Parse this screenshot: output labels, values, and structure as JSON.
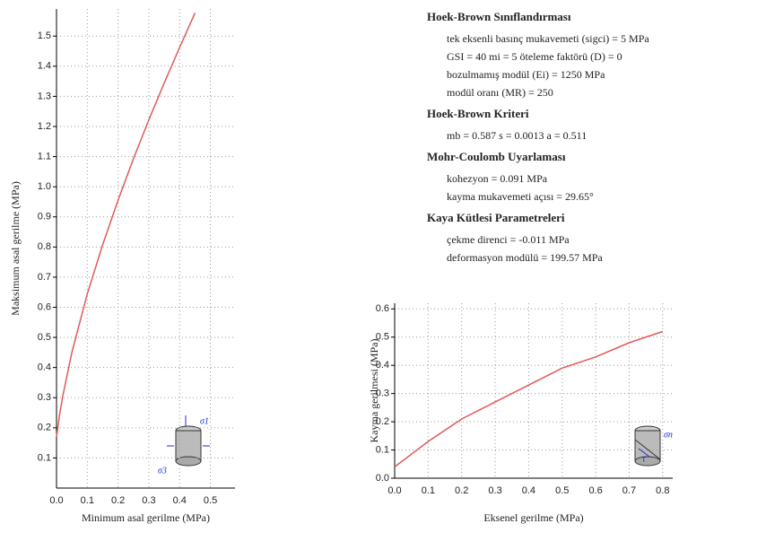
{
  "chart_data": [
    {
      "type": "line",
      "x_label": "Minimum asal gerilme (MPa)",
      "y_label": "Maksimum asal gerilme (MPa)",
      "x": [
        0,
        0.01,
        0.02,
        0.05,
        0.1,
        0.15,
        0.2,
        0.25,
        0.3,
        0.35,
        0.4,
        0.45
      ],
      "series": [
        {
          "color": "#e05a5a",
          "values": [
            0.17,
            0.243,
            0.304,
            0.451,
            0.644,
            0.808,
            0.955,
            1.093,
            1.222,
            1.344,
            1.462,
            1.577
          ]
        }
      ],
      "xlim": [
        0,
        0.58
      ],
      "ylim": [
        0,
        1.59
      ],
      "xticks": [
        {
          "value": 0,
          "label": "0.0"
        },
        0.1,
        0.2,
        0.3,
        0.4,
        0.5
      ],
      "yticks": [
        0.1,
        0.2,
        0.3,
        0.4,
        0.5,
        0.6,
        0.7,
        0.8,
        0.9,
        {
          "value": 1,
          "label": "1.0"
        },
        1.1,
        1.2,
        1.3,
        1.4,
        1.5
      ],
      "grid": true,
      "icon_labels": [
        "σ1",
        "σ3"
      ]
    },
    {
      "type": "line",
      "x_label": "Eksenel gerilme (MPa)",
      "y_label": "Kayma gerilmesi (MPa)",
      "x": [
        0,
        0.1,
        0.2,
        0.3,
        0.4,
        0.5,
        0.6,
        0.7,
        0.8
      ],
      "series": [
        {
          "color": "#e05a5a",
          "values": [
            0.04,
            0.13,
            0.21,
            0.27,
            0.33,
            0.39,
            0.43,
            0.48,
            0.52
          ]
        }
      ],
      "xlim": [
        0,
        0.83
      ],
      "ylim": [
        0,
        0.62
      ],
      "xticks": [
        {
          "value": 0,
          "label": "0.0"
        },
        0.1,
        0.2,
        0.3,
        0.4,
        0.5,
        0.6,
        0.7,
        0.8
      ],
      "yticks": [
        {
          "value": 0,
          "label": "0.0"
        },
        0.1,
        0.2,
        0.3,
        0.4,
        0.5,
        0.6
      ],
      "grid": true,
      "icon_labels": [
        "σn",
        "τ"
      ]
    }
  ],
  "info_panel": {
    "sections": [
      {
        "title": "Hoek-Brown Sınıflandırması",
        "lines": [
          "tek eksenli basınç mukavemeti (sigci) = 5 MPa",
          "GSI = 40   mi = 5  öteleme faktörü (D) = 0",
          "bozulmamış modül (Ei) = 1250 MPa",
          "modül oranı (MR) = 250"
        ]
      },
      {
        "title": "Hoek-Brown Kriteri",
        "lines": [
          "mb = 0.587   s = 0.0013   a = 0.511"
        ]
      },
      {
        "title": "Mohr-Coulomb Uyarlaması",
        "lines": [
          "kohezyon = 0.091 MPa",
          "kayma mukavemeti açısı = 29.65°"
        ]
      },
      {
        "title": "Kaya Kütlesi Parametreleri",
        "lines": [
          "çekme direnci = -0.011 MPa",
          "deformasyon modülü = 199.57 MPa"
        ]
      }
    ]
  }
}
